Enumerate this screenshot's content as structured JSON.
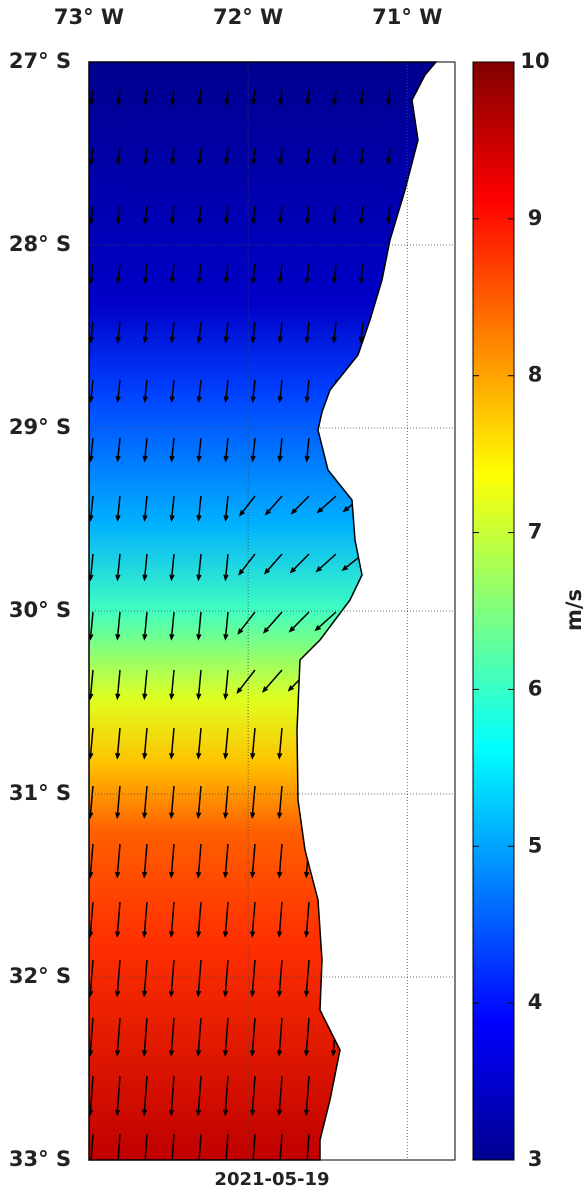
{
  "map": {
    "lonlim": [
      73,
      70.7
    ],
    "latlim": [
      27,
      33
    ],
    "lon_ticks": [
      {
        "value": 73,
        "label": "73° W"
      },
      {
        "value": 72,
        "label": "72° W"
      },
      {
        "value": 71,
        "label": "71° W"
      }
    ],
    "lat_ticks": [
      {
        "value": 27,
        "label": "27° S"
      },
      {
        "value": 28,
        "label": "28° S"
      },
      {
        "value": 29,
        "label": "29° S"
      },
      {
        "value": 30,
        "label": "30° S"
      },
      {
        "value": 31,
        "label": "31° S"
      },
      {
        "value": 32,
        "label": "32° S"
      },
      {
        "value": 33,
        "label": "33° S"
      }
    ],
    "date": "2021-05-19"
  },
  "colorbar": {
    "label": "m/s",
    "range": [
      3,
      10
    ],
    "ticks": [
      3,
      4,
      5,
      6,
      7,
      8,
      9,
      10
    ]
  }
}
